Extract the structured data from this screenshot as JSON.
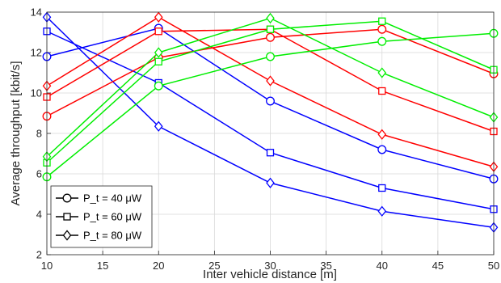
{
  "chart_data": {
    "type": "line",
    "xlabel": "Inter vehicle distance [m]",
    "ylabel": "Average throughput [kbit/s]",
    "xlim": [
      10,
      50
    ],
    "ylim": [
      2,
      14
    ],
    "xticks": [
      10,
      15,
      20,
      25,
      30,
      35,
      40,
      45,
      50
    ],
    "yticks": [
      2,
      4,
      6,
      8,
      10,
      12,
      14
    ],
    "grid": true,
    "legend_position": "bottom-left",
    "legend": [
      {
        "marker": "circle",
        "label": "P_t = 40 μW"
      },
      {
        "marker": "square",
        "label": "P_t = 60 μW"
      },
      {
        "marker": "diamond",
        "label": "P_t = 80 μW"
      }
    ],
    "x": [
      10,
      20,
      30,
      40,
      50
    ],
    "series": [
      {
        "color": "#0000ff",
        "marker": "circle",
        "values": [
          11.8,
          13.2,
          9.6,
          7.2,
          5.75
        ]
      },
      {
        "color": "#0000ff",
        "marker": "square",
        "values": [
          13.05,
          10.5,
          7.05,
          5.3,
          4.25
        ]
      },
      {
        "color": "#0000ff",
        "marker": "diamond",
        "values": [
          13.75,
          8.35,
          5.55,
          4.15,
          3.35
        ]
      },
      {
        "color": "#ff0000",
        "marker": "circle",
        "values": [
          8.85,
          11.75,
          12.75,
          13.15,
          10.95
        ]
      },
      {
        "color": "#ff0000",
        "marker": "square",
        "values": [
          9.8,
          13.05,
          13.15,
          10.1,
          8.1
        ]
      },
      {
        "color": "#ff0000",
        "marker": "diamond",
        "values": [
          10.35,
          13.75,
          10.6,
          7.95,
          6.35
        ]
      },
      {
        "color": "#00ee00",
        "marker": "circle",
        "values": [
          5.85,
          10.35,
          11.8,
          12.55,
          12.95
        ]
      },
      {
        "color": "#00ee00",
        "marker": "square",
        "values": [
          6.55,
          11.55,
          13.15,
          13.55,
          11.15
        ]
      },
      {
        "color": "#00ee00",
        "marker": "diamond",
        "values": [
          6.85,
          12.0,
          13.7,
          11.0,
          8.8
        ]
      }
    ]
  }
}
